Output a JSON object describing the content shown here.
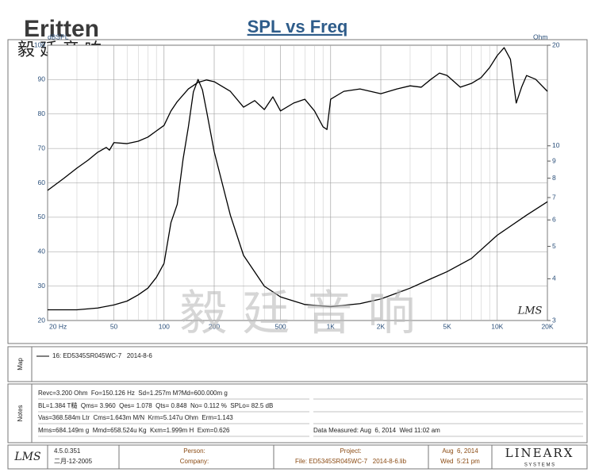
{
  "header": {
    "logo": "Eritten",
    "logo_cn": "毅 廷 音 响"
  },
  "chart_data": {
    "type": "line",
    "title": "SPL vs Freq",
    "ylabel": "dBSPL",
    "y2label": "Ohm",
    "xscale": "log",
    "y2scale": "log",
    "grid": true,
    "xlim": [
      20,
      20000
    ],
    "ylim": [
      20,
      100
    ],
    "y2lim": [
      3,
      20
    ],
    "xticks": [
      {
        "value": 20,
        "label": "20 Hz"
      },
      50,
      100,
      200,
      500,
      {
        "value": 1000,
        "label": "1K"
      },
      {
        "value": 2000,
        "label": "2K"
      },
      {
        "value": 5000,
        "label": "5K"
      },
      {
        "value": 10000,
        "label": "10K"
      },
      {
        "value": 20000,
        "label": "20K"
      }
    ],
    "xminor": [
      30,
      40,
      60,
      70,
      80,
      90,
      300,
      400,
      600,
      700,
      800,
      900,
      3000,
      4000,
      6000,
      7000,
      8000,
      9000
    ],
    "yticks": [
      20,
      30,
      40,
      50,
      60,
      70,
      80,
      90,
      100
    ],
    "y2ticks": [
      3,
      4,
      5,
      6,
      7,
      8,
      9,
      10,
      20
    ],
    "series": [
      {
        "color": "#000000",
        "x": [
          20,
          25,
          30,
          35,
          40,
          45,
          47,
          50,
          60,
          70,
          80,
          90,
          100,
          110,
          120,
          140,
          160,
          180,
          200,
          250,
          300,
          350,
          400,
          450,
          500,
          600,
          700,
          800,
          900,
          950,
          1000,
          1200,
          1500,
          2000,
          2500,
          3000,
          3500,
          4000,
          4500,
          5000,
          6000,
          7000,
          8000,
          9000,
          10000,
          11000,
          12000,
          13000,
          14000,
          15000,
          17000,
          20000
        ],
        "values": [
          57.8,
          61.3,
          64.3,
          66.6,
          68.9,
          70.3,
          69.5,
          71.7,
          71.4,
          72.1,
          73.3,
          75.1,
          76.7,
          80.9,
          83.6,
          87.3,
          89.2,
          89.9,
          89.4,
          86.6,
          82,
          83.9,
          81.3,
          85,
          80.9,
          83.2,
          84.3,
          80.9,
          76.3,
          75.5,
          84.3,
          86.6,
          87.3,
          85.9,
          87.3,
          88.2,
          87.8,
          90.1,
          91.9,
          91.2,
          87.8,
          88.9,
          90.6,
          93.5,
          97,
          99.3,
          95.9,
          83.2,
          87.8,
          91.2,
          90.1,
          86.6
        ]
      },
      {
        "color": "#000000",
        "axis": "y2",
        "x": [
          20,
          30,
          40,
          50,
          60,
          70,
          80,
          90,
          100,
          110,
          120,
          130,
          140,
          150,
          160,
          170,
          180,
          200,
          250,
          300,
          400,
          500,
          700,
          1000,
          1500,
          2000,
          3000,
          4000,
          5000,
          7000,
          10000,
          15000,
          20000
        ],
        "values": [
          3.23,
          3.23,
          3.27,
          3.34,
          3.43,
          3.58,
          3.75,
          4.04,
          4.45,
          5.89,
          6.68,
          9.1,
          11.4,
          14.5,
          15.8,
          14.7,
          12.7,
          9.6,
          6.2,
          4.7,
          3.8,
          3.53,
          3.35,
          3.3,
          3.37,
          3.48,
          3.75,
          4.0,
          4.2,
          4.6,
          5.4,
          6.2,
          6.8
        ]
      }
    ]
  },
  "watermark": "毅 廷 音 响",
  "plot_logo": "LMS",
  "map": {
    "label": "Map",
    "legend": "16: ED5345SR045WC-7   2014-8-6"
  },
  "notes": {
    "label": "Notes",
    "lines": [
      "Revc=3.200 Ohm  Fo=150.126 Hz  Sd=1.257m M?Md=600.000m g",
      "BL=1.384 T糙  Qms= 3.960  Qes= 1.078  Qts= 0.848  No= 0.112 %  SPLo= 82.5 dB",
      "Vas=368.584m Ltr  Cms=1.643m M/N  Krm=5.147u Ohm  Erm=1.143",
      "Mms=684.149m g  Mmd=658.524u Kg  Kxm=1.999m H  Exm=0.626"
    ],
    "measured": "Data Measured: Aug  6, 2014  Wed 11:02 am"
  },
  "footer": {
    "logo": "LMS",
    "version": "4.5.0.351",
    "build": "二月-12-2005",
    "person": "Person:",
    "company": "Company:",
    "project": "Project:",
    "file": "File: ED5345SR045WC-7   2014-8-6.lib",
    "date": "Aug  6, 2014",
    "time": "Wed  5:21 pm",
    "brand": "LINEARX",
    "brand_sub": "S Y S T E M S"
  }
}
